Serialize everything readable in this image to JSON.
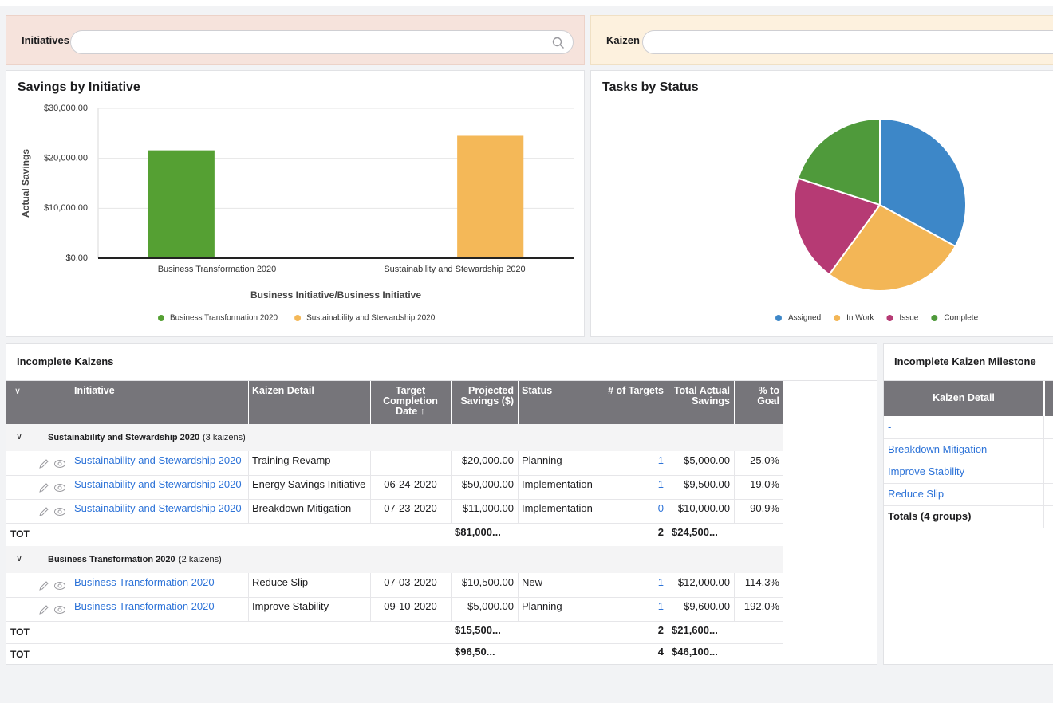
{
  "filters": {
    "initiatives_label": "Initiatives",
    "kaizen_label": "Kaizen"
  },
  "chart_data": [
    {
      "type": "bar",
      "title": "Savings by Initiative",
      "y_label": "Actual Savings",
      "x_label": "Business Initiative/Business Initiative",
      "categories": [
        "Business Transformation 2020",
        "Sustainability and Stewardship 2020"
      ],
      "series": [
        {
          "name": "Business Transformation 2020",
          "color": "#55a033",
          "values": [
            21600,
            null
          ]
        },
        {
          "name": "Sustainability and Stewardship 2020",
          "color": "#f4b858",
          "values": [
            null,
            24500
          ]
        }
      ],
      "ylim": [
        0,
        30000
      ],
      "yticks": [
        {
          "value": 0,
          "label": "$0.00"
        },
        {
          "value": 10000,
          "label": "$10,000.00"
        },
        {
          "value": 20000,
          "label": "$20,000.00"
        },
        {
          "value": 30000,
          "label": "$30,000.00"
        }
      ],
      "grid": true,
      "legend": "bottom"
    },
    {
      "type": "pie",
      "title": "Tasks by Status",
      "categories": [
        "Assigned",
        "In Work",
        "Issue",
        "Complete"
      ],
      "values": [
        33,
        27,
        20,
        20
      ],
      "colors": [
        "#3d87c8",
        "#f3b656",
        "#b63a74",
        "#4f9a3b"
      ],
      "legend": "bottom"
    }
  ],
  "incomplete_kaizens": {
    "title": "Incomplete Kaizens",
    "columns": [
      "Initiative",
      "Kaizen Detail",
      "Target Completion Date ↑",
      "Projected Savings ($)",
      "Status",
      "# of Targets",
      "Total Actual Savings",
      "% to Goal"
    ],
    "groups": [
      {
        "name": "Sustainability and Stewardship 2020",
        "count_label": "(3 kaizens)",
        "rows": [
          [
            "Sustainability and Stewardship 2020",
            "Training Revamp",
            null,
            "$20,000.00",
            "Planning",
            "1",
            "$5,000.00",
            "25.0%"
          ],
          [
            "Sustainability and Stewardship 2020",
            "Energy Savings Initiative",
            "06-24-2020",
            "$50,000.00",
            "Implementation",
            "1",
            "$9,500.00",
            "19.0%"
          ],
          [
            "Sustainability and Stewardship 2020",
            "Breakdown Mitigation",
            "07-23-2020",
            "$11,000.00",
            "Implementation",
            "0",
            "$10,000.00",
            "90.9%"
          ]
        ],
        "total": {
          "label": "TOT",
          "projected": "$81,000...",
          "targets": "2",
          "actual": "$24,500..."
        }
      },
      {
        "name": "Business Transformation 2020",
        "count_label": "(2 kaizens)",
        "rows": [
          [
            "Business Transformation 2020",
            "Reduce Slip",
            "07-03-2020",
            "$10,500.00",
            "New",
            "1",
            "$12,000.00",
            "114.3%"
          ],
          [
            "Business Transformation 2020",
            "Improve Stability",
            "09-10-2020",
            "$5,000.00",
            "Planning",
            "1",
            "$9,600.00",
            "192.0%"
          ]
        ],
        "total": {
          "label": "TOT",
          "projected": "$15,500...",
          "targets": "2",
          "actual": "$21,600..."
        }
      }
    ],
    "grand_total": {
      "label": "TOT",
      "projected": "$96,50...",
      "targets": "4",
      "actual": "$46,100..."
    }
  },
  "milestones": {
    "title": "Incomplete Kaizen Milestone",
    "column": "Kaizen Detail",
    "rows": [
      "-",
      "Breakdown Mitigation",
      "Improve Stability",
      "Reduce Slip"
    ],
    "totals": "Totals (4 groups)"
  }
}
